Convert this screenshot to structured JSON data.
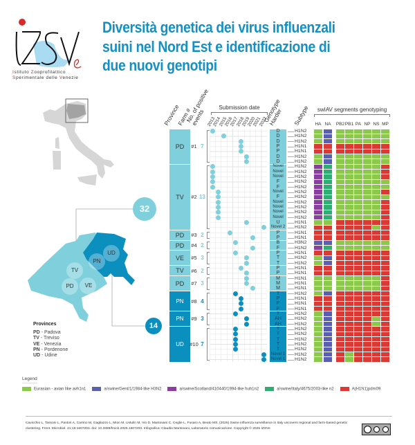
{
  "header": {
    "title_lines": [
      "Diversità genetica dei virus influenzali",
      "suini nel Nord Est e identificazione di",
      "due nuovi genotipi"
    ],
    "logo": {
      "letters": "IZSVe",
      "line1": [
        "I",
        "stituto ",
        "Z",
        "ooprofilattico"
      ],
      "line2": [
        "S",
        "perimentale delle ",
        "V",
        "enezie"
      ]
    }
  },
  "columns": {
    "province": "Province",
    "farm": "Farm #",
    "events": "No. of positive events",
    "submission_date": "Submission date",
    "genotype": "Genotype Harder",
    "subtype": "Subtype",
    "segments_title": "swIAV segments genotyping",
    "segments": [
      "HA",
      "NA",
      "PB2",
      "PB1",
      "PA",
      "NP",
      "NS",
      "MP"
    ],
    "years": [
      "2013",
      "2014",
      "2015",
      "2016",
      "2017",
      "2018",
      "2019",
      "2020",
      "2021",
      "2022"
    ]
  },
  "colors": {
    "veneto": "#7fd0dc",
    "fvg": "#0a8fbf",
    "G": "#8cc84b",
    "B": "#5a5fb0",
    "S": "#8a3fa0",
    "I": "#2fae74",
    "R": "#d93a35",
    "title": "#1590c2"
  },
  "groups": [
    {
      "province": "PD",
      "farm": "#1",
      "events": "7",
      "region": "veneto",
      "rows": [
        {
          "g": "D",
          "s": "H1N2",
          "y": "2013",
          "seg": "GBGGGGGG"
        },
        {
          "g": "D",
          "s": "H1N2",
          "y": "2015",
          "seg": "GBGGGGGG"
        },
        {
          "g": "D",
          "s": "H1N2",
          "y": "2018",
          "seg": "GBGGGGGG"
        },
        {
          "g": "P",
          "s": "H1N1",
          "y": "2018",
          "seg": "RRRRRRRR"
        },
        {
          "g": "P",
          "s": "H1N1",
          "y": "2018",
          "seg": "RRRRRRRR"
        },
        {
          "g": "D",
          "s": "H1N2",
          "y": "2019",
          "seg": "GBGGGGGG"
        },
        {
          "g": "D",
          "s": "H1N2",
          "y": "2019",
          "seg": "GBGGGGGG"
        }
      ]
    },
    {
      "province": "TV",
      "farm": "#2",
      "events": "13",
      "region": "veneto",
      "rows": [
        {
          "g": "Novel",
          "s": "H1N2",
          "y": "2013",
          "seg": "SIGGGGGR"
        },
        {
          "g": "Novel",
          "s": "H1N2",
          "y": "2013",
          "seg": "SIGGGGGR"
        },
        {
          "g": "Novel",
          "s": "H1N2",
          "y": "2013",
          "seg": "SIGGGGGR"
        },
        {
          "g": "F",
          "s": "H1N2",
          "y": "2013",
          "seg": "SIGGGGGG"
        },
        {
          "g": "F",
          "s": "H1N2",
          "y": "2013",
          "seg": "SIGGGGGG"
        },
        {
          "g": "Novel",
          "s": "H1N2",
          "y": "2014",
          "seg": "SIGGGGGR"
        },
        {
          "g": "F",
          "s": "H1N2",
          "y": "2014",
          "seg": "SIGGGGGG"
        },
        {
          "g": "Novel",
          "s": "H1N2",
          "y": "2014",
          "seg": "SIGGGGGR"
        },
        {
          "g": "Novel",
          "s": "H1N2",
          "y": "2014",
          "seg": "SIGGGGGR"
        },
        {
          "g": "Novel",
          "s": "H1N2",
          "y": "2014",
          "seg": "SIGGGGGR"
        },
        {
          "g": "Novel",
          "s": "H1N2",
          "y": "2014",
          "seg": "SIGGGGGR"
        },
        {
          "g": "U",
          "s": "H1N1",
          "y": "2019",
          "seg": "GGRRRRRR"
        },
        {
          "g": "Novel 2",
          "s": "H1N2",
          "y": "2022",
          "seg": "RRRRRRGR"
        }
      ]
    },
    {
      "province": "PD",
      "farm": "#3",
      "events": "2",
      "region": "veneto",
      "rows": [
        {
          "g": "P",
          "s": "H1N1",
          "y": "2016",
          "seg": "RRRRRRRR"
        },
        {
          "g": "P",
          "s": "H1N1",
          "y": "2020",
          "seg": "RRRRRRRR"
        }
      ]
    },
    {
      "province": "PD",
      "farm": "#4",
      "events": "2",
      "region": "veneto",
      "rows": [
        {
          "g": "B",
          "s": "H3N2",
          "y": "2017",
          "seg": "BBGGGGGG"
        },
        {
          "g": "F",
          "s": "H1N2",
          "y": "2020",
          "seg": "SIGGGGGG"
        }
      ]
    },
    {
      "province": "VE",
      "farm": "#5",
      "events": "3",
      "region": "veneto",
      "rows": [
        {
          "g": "P",
          "s": "H1N1",
          "y": "2017",
          "seg": "RRRRRRRR"
        },
        {
          "g": "T",
          "s": "H1N2",
          "y": "2019",
          "seg": "GBRRRRRR"
        },
        {
          "g": "T",
          "s": "H1N2",
          "y": "2019",
          "seg": "GBRRRRRR"
        }
      ]
    },
    {
      "province": "TV",
      "farm": "#6",
      "events": "2",
      "region": "veneto",
      "rows": [
        {
          "g": "P",
          "s": "H1N1",
          "y": "2018",
          "seg": "RRRRRRRR"
        },
        {
          "g": "P",
          "s": "H1N1",
          "y": "2019",
          "seg": "RRRRRRRR"
        }
      ]
    },
    {
      "province": "PD",
      "farm": "#7",
      "events": "3",
      "region": "veneto",
      "rows": [
        {
          "g": "M",
          "s": "H1N1",
          "y": "2019",
          "seg": "GGGGGGGR"
        },
        {
          "g": "M",
          "s": "H1N1",
          "y": "2019",
          "seg": "GGGGGGGR"
        },
        {
          "g": "M",
          "s": "H1N1",
          "y": "2020",
          "seg": "GGGGGGGR"
        }
      ]
    },
    {
      "province": "PN",
      "farm": "#8",
      "events": "4",
      "region": "fvg",
      "rows": [
        {
          "g": "T",
          "s": "H1N2",
          "y": "2017",
          "seg": "GBRRRRRR"
        },
        {
          "g": "P",
          "s": "H1N1",
          "y": "2018",
          "seg": "RRRRRRRR"
        },
        {
          "g": "P",
          "s": "H1N1",
          "y": "2018",
          "seg": "RRRRRRRR"
        },
        {
          "g": "P",
          "s": "H1N1",
          "y": "2018",
          "seg": "RRRRRRRR"
        }
      ]
    },
    {
      "province": "PN",
      "farm": "#9",
      "events": "3",
      "region": "fvg",
      "rows": [
        {
          "g": "T",
          "s": "H1N2",
          "y": "2017",
          "seg": "GBRRRRRR"
        },
        {
          "g": "AH",
          "s": "H1N2",
          "y": "2019",
          "seg": "GBRRRRGR"
        },
        {
          "g": "AH",
          "s": "H1N2",
          "y": "2019",
          "seg": "GBRRRRGR"
        }
      ]
    },
    {
      "province": "UD",
      "farm": "#10",
      "events": "7",
      "region": "fvg",
      "rows": [
        {
          "g": "T",
          "s": "H1N2",
          "y": "2017",
          "seg": "GBRRRRRR"
        },
        {
          "g": "T",
          "s": "H1N2",
          "y": "2017",
          "seg": "GBRRRRRR"
        },
        {
          "g": "T",
          "s": "H1N2",
          "y": "2017",
          "seg": "GBRRRRRR"
        },
        {
          "g": "T",
          "s": "H1N2",
          "y": "2017",
          "seg": "GBRRRRRR"
        },
        {
          "g": "T",
          "s": "H1N2",
          "y": "2017",
          "seg": "GBRRRRRR"
        },
        {
          "g": "Novel 1",
          "s": "H1N2",
          "y": "2022",
          "seg": "GBRGRRRR"
        },
        {
          "g": "Novel 1",
          "s": "H1N2",
          "y": "2022",
          "seg": "GBRGRRRR"
        }
      ]
    }
  ],
  "map": {
    "veneto_total": "32",
    "fvg_total": "14",
    "labels": [
      "TV",
      "PD",
      "VE",
      "PN",
      "UD"
    ],
    "provinces_title": "Provinces",
    "provinces": [
      {
        "code": "PD",
        "name": " - Padova"
      },
      {
        "code": "TV",
        "name": " - Treviso"
      },
      {
        "code": "VE",
        "name": " - Venezia"
      },
      {
        "code": "PN",
        "name": " - Pordenone"
      },
      {
        "code": "UD",
        "name": " - Udine"
      }
    ]
  },
  "legend": {
    "title": "Legend",
    "items": [
      {
        "code": "G",
        "label": "Eurasian - avian like avh1n1"
      },
      {
        "code": "B",
        "label": "a/swine/Gent/1/1984-like H3N2"
      },
      {
        "code": "S",
        "label": "a/swine/Scotland/410440/1994-like huh1n2"
      },
      {
        "code": "I",
        "label": "a/swine/Italy/4675/2003-like n2"
      },
      {
        "code": "R",
        "label": "A(H1N1)pdm09"
      }
    ]
  },
  "footer": {
    "citation": "Cavicchio L, Tassoni L, Pastori A, Carrino M, Gagliazzo L, Mion M, Ustulin M, Vio D, Mantovani C, Ceglie L, Fusaro A, Beato MS. (2025) Swine influenza surveillance in Italy uncovers regional and farm-based genetic clustering. Front. Microbiol. 21;16:1607204. doi: 10.3389/fmicb.2025.1607204. Infografica: Claudio Mantovani, Laboratorio comunicazione. Copyright © 2025 IZSVe",
    "license": "cc by nc"
  }
}
